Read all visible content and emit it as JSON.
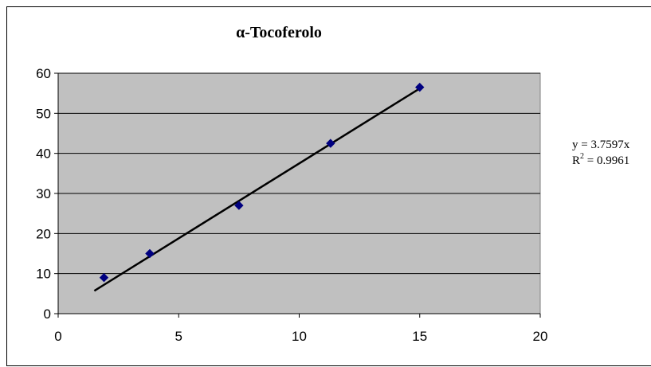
{
  "chart_data": {
    "type": "scatter",
    "title": "α-Tocoferolo",
    "xlabel": "",
    "ylabel": "",
    "xlim": [
      0,
      20
    ],
    "ylim": [
      0,
      60
    ],
    "x_ticks": [
      0,
      5,
      10,
      15,
      20
    ],
    "y_ticks": [
      0,
      10,
      20,
      30,
      40,
      50,
      60
    ],
    "grid": "horizontal",
    "series": [
      {
        "marker": "diamond",
        "color": "#000080",
        "points": [
          {
            "x": 1.9,
            "y": 9
          },
          {
            "x": 3.8,
            "y": 15
          },
          {
            "x": 7.5,
            "y": 27
          },
          {
            "x": 11.3,
            "y": 42.5
          },
          {
            "x": 15.0,
            "y": 56.5
          }
        ]
      }
    ],
    "trendline": {
      "type": "linear",
      "x_range": [
        1.5,
        15
      ],
      "y_range": [
        5.7,
        56.2
      ],
      "color": "#000000",
      "equation": "y = 3.7597x",
      "r2_prefix": "R",
      "r2_sup": "2",
      "r2_value": " = 0.9961"
    },
    "plot_background": "#c0c0c0"
  }
}
